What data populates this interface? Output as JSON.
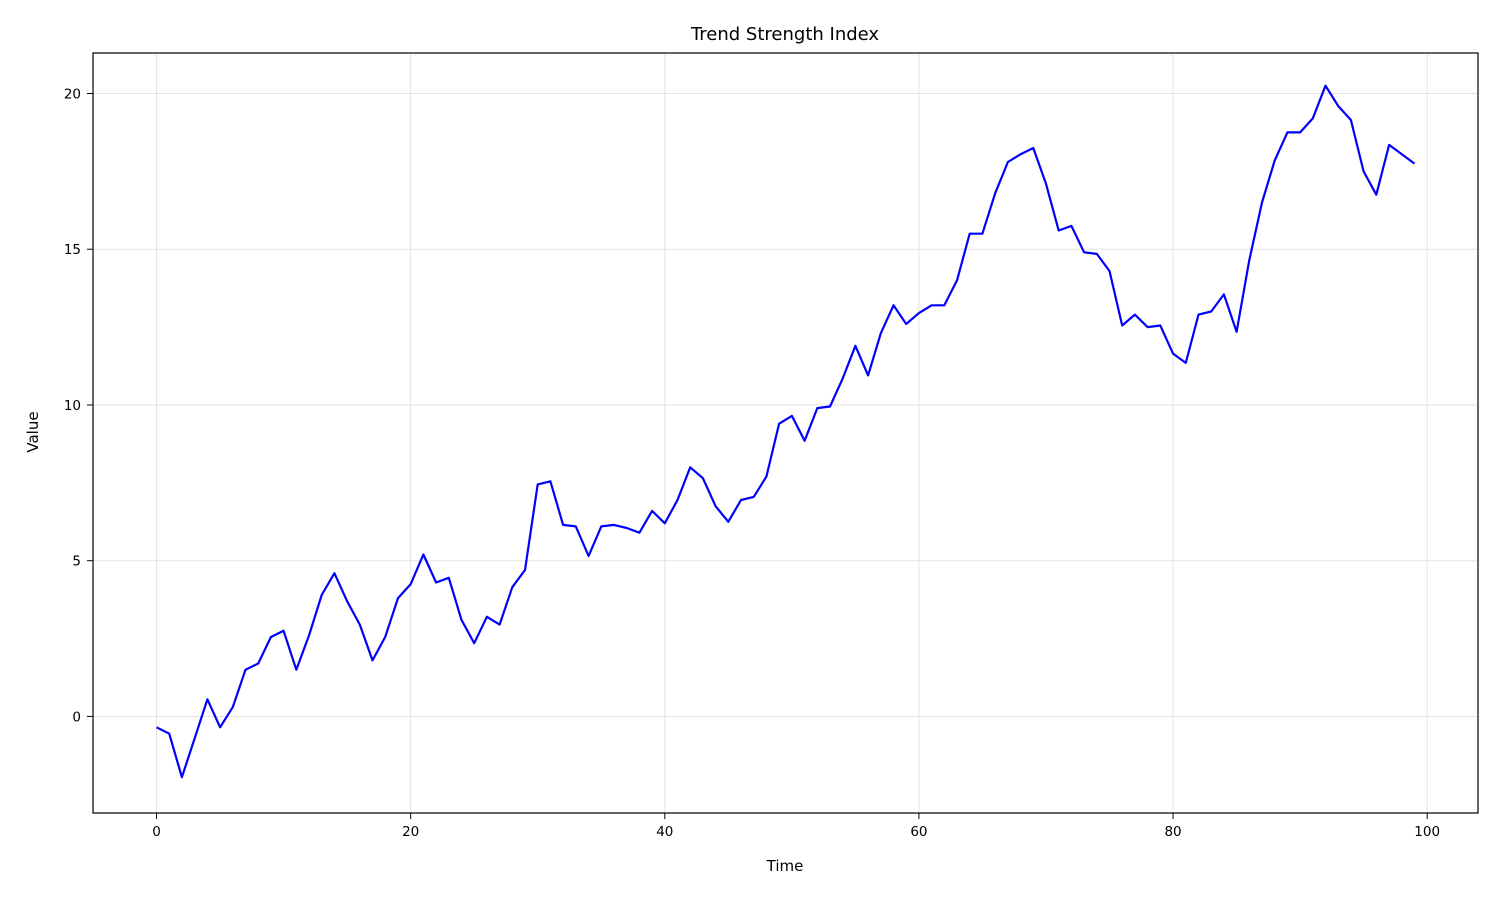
{
  "chart_data": {
    "type": "line",
    "title": "Trend Strength Index",
    "xlabel": "Time",
    "ylabel": "Value",
    "xlim": [
      -5,
      104
    ],
    "ylim": [
      -3.1,
      21.3
    ],
    "xticks": [
      0,
      20,
      40,
      60,
      80,
      100
    ],
    "yticks": [
      0,
      5,
      10,
      15,
      20
    ],
    "grid": true,
    "legend": "none",
    "line_color": "#0000ff",
    "series": [
      {
        "x": [
          0,
          1,
          2,
          3,
          4,
          5,
          6,
          7,
          8,
          9,
          10,
          11,
          12,
          13,
          14,
          15,
          16,
          17,
          18,
          19,
          20,
          21,
          22,
          23,
          24,
          25,
          26,
          27,
          28,
          29,
          30,
          31,
          32,
          33,
          34,
          35,
          36,
          37,
          38,
          39,
          40,
          41,
          42,
          43,
          44,
          45,
          46,
          47,
          48,
          49,
          50,
          51,
          52,
          53,
          54,
          55,
          56,
          57,
          58,
          59,
          60,
          61,
          62,
          63,
          64,
          65,
          66,
          67,
          68,
          69,
          70,
          71,
          72,
          73,
          74,
          75,
          76,
          77,
          78,
          79,
          80,
          81,
          82,
          83,
          84,
          85,
          86,
          87,
          88,
          89,
          90,
          91,
          92,
          93,
          94,
          95,
          96,
          97,
          98,
          99
        ],
        "values": [
          -0.35,
          -0.55,
          -1.95,
          -0.7,
          0.55,
          -0.35,
          0.3,
          1.5,
          1.7,
          2.55,
          2.75,
          1.5,
          2.6,
          3.9,
          4.6,
          3.7,
          2.95,
          1.8,
          2.55,
          3.8,
          4.25,
          5.2,
          4.3,
          4.45,
          3.1,
          2.35,
          3.2,
          2.95,
          4.15,
          4.7,
          7.45,
          7.55,
          6.15,
          6.1,
          5.15,
          6.1,
          6.15,
          6.05,
          5.9,
          6.6,
          6.2,
          6.95,
          8.0,
          7.65,
          6.75,
          6.25,
          6.95,
          7.05,
          7.7,
          9.4,
          9.65,
          8.85,
          9.9,
          9.95,
          10.85,
          11.9,
          10.95,
          12.3,
          13.2,
          12.6,
          12.95,
          13.2,
          13.2,
          14.0,
          15.5,
          15.5,
          16.8,
          17.8,
          18.05,
          18.25,
          17.1,
          15.6,
          15.75,
          14.9,
          14.85,
          14.3,
          12.55,
          12.9,
          12.5,
          12.55,
          11.65,
          11.35,
          12.9,
          13.0,
          13.55,
          12.35,
          14.65,
          16.5,
          17.85,
          18.75,
          18.75,
          19.2,
          20.25,
          19.6,
          19.15,
          17.5,
          16.75,
          18.35,
          18.05,
          17.75
        ]
      }
    ]
  }
}
